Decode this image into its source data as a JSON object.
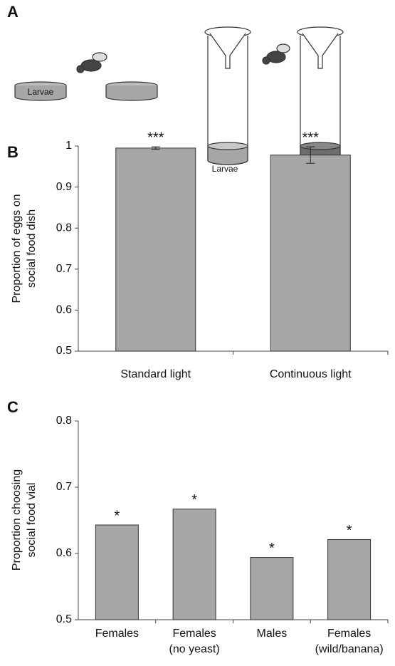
{
  "panel_a": {
    "label": "A",
    "dish_labels": [
      "Larvae",
      "Larvae"
    ]
  },
  "chart_data": [
    {
      "type": "bar",
      "panel_label": "B",
      "ylabel": [
        "Proportion of eggs on",
        "social food dish"
      ],
      "categories": [
        [
          "Standard light"
        ],
        [
          "Continuous light"
        ]
      ],
      "values": [
        0.995,
        0.978
      ],
      "errors": [
        0.003,
        0.02
      ],
      "annotations": [
        "***",
        "***"
      ],
      "color": "#a6a6a6",
      "ylim": [
        0.5,
        1
      ],
      "yticks": [
        0.5,
        0.6,
        0.7,
        0.8,
        0.9,
        1
      ]
    },
    {
      "type": "bar",
      "panel_label": "C",
      "ylabel": [
        "Proportion choosing",
        "social food vial"
      ],
      "categories": [
        [
          "Females"
        ],
        [
          "Females",
          "(no yeast)"
        ],
        [
          "Males"
        ],
        [
          "Females",
          "(wild/banana)"
        ]
      ],
      "values": [
        0.643,
        0.667,
        0.594,
        0.621
      ],
      "annotations": [
        "*",
        "*",
        "*",
        "*"
      ],
      "color": "#a6a6a6",
      "ylim": [
        0.5,
        0.8
      ],
      "yticks": [
        0.5,
        0.6,
        0.7,
        0.8
      ]
    }
  ]
}
